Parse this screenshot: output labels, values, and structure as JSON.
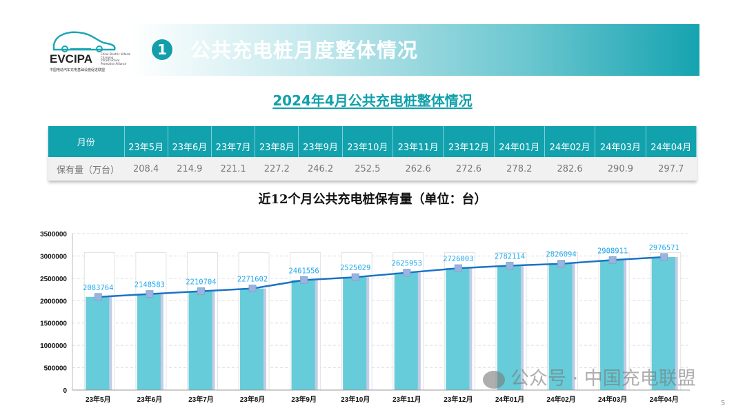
{
  "logo": {
    "name": "EVCIPA",
    "en": "China Electric Vehicle Charging Infrastructure Promotion Alliance",
    "cn": "中国电动汽车充电基础设施促进联盟"
  },
  "banner": {
    "number": "1",
    "title": "公共充电桩月度整体情况"
  },
  "subtitle": "2024年4月公共充电桩整体情况",
  "table": {
    "header_label": "月份",
    "row_label": "保有量（万台）",
    "months": [
      "23年5月",
      "23年6月",
      "23年7月",
      "23年8月",
      "23年9月",
      "23年10月",
      "23年11月",
      "23年12月",
      "24年01月",
      "24年02月",
      "24年03月",
      "24年04月"
    ],
    "values": [
      "208.4",
      "214.9",
      "221.1",
      "227.2",
      "246.2",
      "252.5",
      "262.6",
      "272.6",
      "278.2",
      "282.6",
      "290.9",
      "297.7"
    ]
  },
  "chart_data": {
    "type": "bar",
    "title": "近12个月公共充电桩保有量（单位：台）",
    "categories": [
      "23年5月",
      "23年6月",
      "23年7月",
      "23年8月",
      "23年9月",
      "23年10月",
      "23年11月",
      "23年12月",
      "24年01月",
      "24年02月",
      "24年03月",
      "24年04月"
    ],
    "values": [
      2083764,
      2148583,
      2210704,
      2271602,
      2461556,
      2525029,
      2625953,
      2726003,
      2782114,
      2826094,
      2908911,
      2976571
    ],
    "overlay": "line",
    "ylim": [
      0,
      3500000
    ],
    "yticks": [
      0,
      500000,
      1000000,
      1500000,
      2000000,
      2500000,
      3000000,
      3500000
    ],
    "grid": true,
    "colors": {
      "bar": "#66ccd9",
      "line": "#1a73c6",
      "marker": "#98b4e0",
      "label": "#22aaee"
    }
  },
  "watermark": "公众号 · 中国充电联盟",
  "page_number": "5"
}
